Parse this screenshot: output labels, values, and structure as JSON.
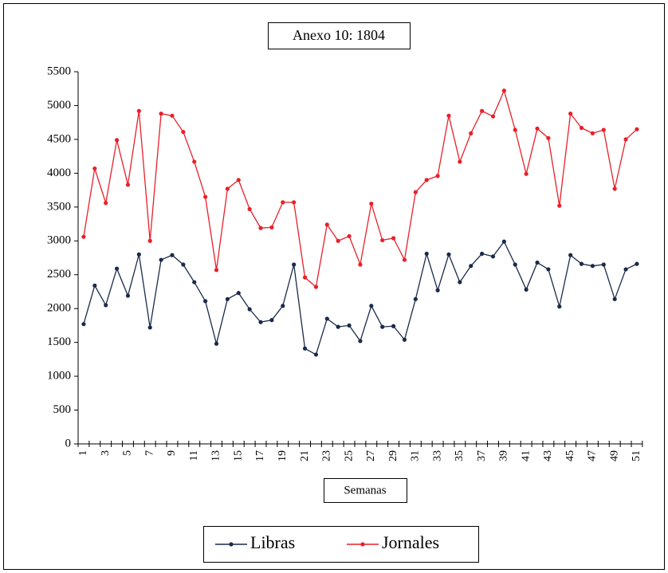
{
  "chart_data": {
    "type": "line",
    "title": "Anexo 10: 1804",
    "xlabel": "Semanas",
    "categories": [
      "1",
      null,
      "3",
      null,
      "5",
      null,
      "7",
      null,
      "9",
      null,
      "11",
      null,
      "13",
      null,
      "15",
      null,
      "17",
      null,
      "19",
      null,
      "21",
      null,
      "23",
      null,
      "25",
      null,
      "27",
      null,
      "29",
      null,
      "31",
      null,
      "33",
      null,
      "35",
      null,
      "37",
      null,
      "39",
      null,
      "41",
      null,
      "43",
      null,
      "45",
      null,
      "47",
      null,
      "49",
      null,
      "51"
    ],
    "series": [
      {
        "name": "Libras",
        "color": "#1b2a4a",
        "values": [
          1770,
          2340,
          2050,
          2590,
          2190,
          2800,
          1720,
          2720,
          2790,
          2650,
          2390,
          2110,
          1480,
          2140,
          2230,
          1990,
          1800,
          1830,
          2040,
          2650,
          1410,
          1320,
          1850,
          1730,
          1750,
          1520,
          2040,
          1730,
          1740,
          1540,
          2140,
          2810,
          2270,
          2800,
          2390,
          2630,
          2810,
          2770,
          2990,
          2650,
          2280,
          2680,
          2580,
          2030,
          2790,
          2660,
          2630,
          2650,
          2140,
          2580,
          2660
        ]
      },
      {
        "name": "Jornales",
        "color": "#e8202a",
        "values": [
          3060,
          4070,
          3560,
          4490,
          3830,
          4920,
          3000,
          4880,
          4850,
          4610,
          4170,
          3650,
          2570,
          3770,
          3900,
          3470,
          3190,
          3200,
          3570,
          3570,
          2460,
          2320,
          3240,
          3000,
          3070,
          2650,
          3550,
          3010,
          3040,
          2720,
          3720,
          3900,
          3960,
          4850,
          4170,
          4590,
          4920,
          4840,
          5220,
          4640,
          3990,
          4660,
          4520,
          3520,
          4880,
          4670,
          4590,
          4640,
          3770,
          4500,
          4650
        ]
      }
    ],
    "ylim": [
      0,
      5500
    ],
    "yticks": [
      0,
      500,
      1000,
      1500,
      2000,
      2500,
      3000,
      3500,
      4000,
      4500,
      5000,
      5500
    ],
    "grid": false,
    "legend": "bottom"
  }
}
